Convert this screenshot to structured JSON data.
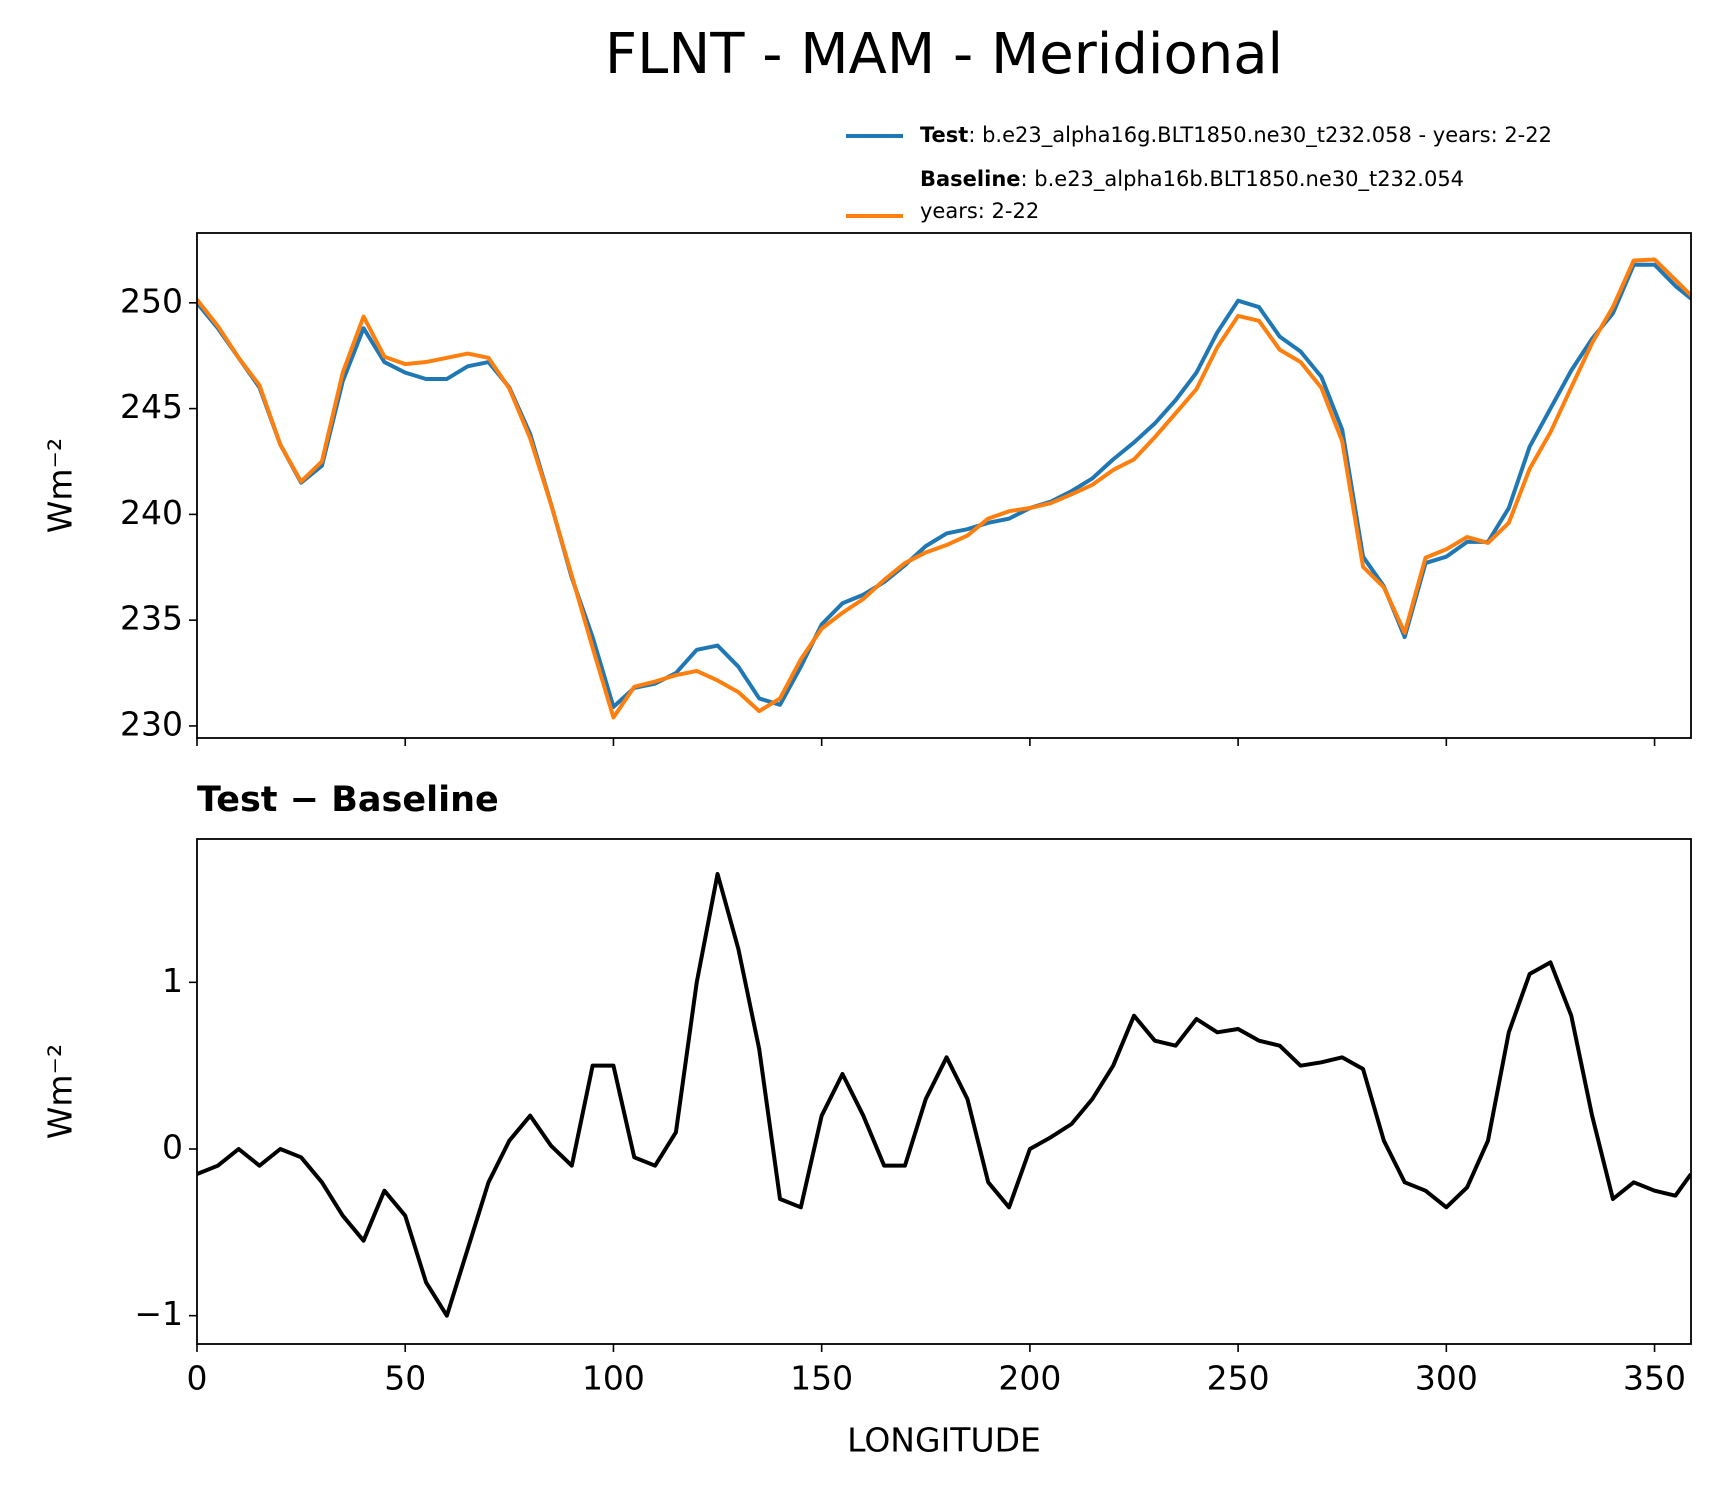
{
  "chart_data": [
    {
      "type": "line",
      "title": "FLNT - MAM - Meridional",
      "ylabel": "Wm⁻²",
      "x": [
        0,
        5,
        10,
        15,
        20,
        25,
        30,
        35,
        40,
        45,
        50,
        55,
        60,
        65,
        70,
        75,
        80,
        85,
        90,
        95,
        100,
        105,
        110,
        115,
        120,
        125,
        130,
        135,
        140,
        145,
        150,
        155,
        160,
        165,
        170,
        175,
        180,
        185,
        190,
        195,
        200,
        205,
        210,
        215,
        220,
        225,
        230,
        235,
        240,
        245,
        250,
        255,
        260,
        265,
        270,
        275,
        280,
        285,
        290,
        295,
        300,
        305,
        310,
        315,
        320,
        325,
        330,
        335,
        340,
        345,
        350,
        355,
        358.75
      ],
      "xlim": [
        0,
        358.75
      ],
      "xticks": [
        0,
        50,
        100,
        150,
        200,
        250,
        300,
        350
      ],
      "show_xtick_labels": false,
      "ylim": [
        229.43,
        253.3
      ],
      "yticks": [
        230,
        235,
        240,
        245,
        250
      ],
      "series": [
        {
          "name": "Test",
          "legend_text": [
            ": b.e23_alpha16g.BLT1850.ne30_t232.058 - years: 2-22"
          ],
          "color": "#1f77b4",
          "values": [
            250,
            248.8,
            247.4,
            246,
            243.3,
            241.5,
            242.3,
            246.3,
            248.8,
            247.2,
            246.7,
            246.4,
            246.4,
            247,
            247.2,
            246,
            243.8,
            240.5,
            237,
            234.2,
            230.9,
            231.8,
            232,
            232.5,
            233.6,
            233.8,
            232.8,
            231.3,
            231,
            232.8,
            234.8,
            235.8,
            236.2,
            236.8,
            237.6,
            238.5,
            239.1,
            239.3,
            239.6,
            239.8,
            240.3,
            240.6,
            241.1,
            241.7,
            242.6,
            243.4,
            244.3,
            245.4,
            246.7,
            248.6,
            250.1,
            249.8,
            248.4,
            247.7,
            246.5,
            244,
            238,
            236.6,
            234.2,
            237.7,
            238,
            238.7,
            238.7,
            240.3,
            243.2,
            245,
            246.8,
            248.3,
            249.5,
            251.8,
            251.8,
            250.8,
            250.2
          ]
        },
        {
          "name": "Baseline",
          "legend_text": [
            ": b.e23_alpha16b.BLT1850.ne30_t232.054",
            "years: 2-22"
          ],
          "color": "#ff7f0e",
          "values": [
            250.15,
            248.9,
            247.4,
            246.1,
            243.3,
            241.55,
            242.5,
            246.7,
            249.35,
            247.45,
            247.1,
            247.2,
            247.4,
            247.6,
            247.4,
            245.95,
            243.6,
            240.48,
            237.1,
            233.7,
            230.4,
            231.85,
            232.1,
            232.4,
            232.6,
            232.15,
            231.6,
            230.7,
            231.3,
            233.15,
            234.6,
            235.35,
            236,
            236.9,
            237.7,
            238.2,
            238.55,
            239,
            239.8,
            240.15,
            240.3,
            240.53,
            240.95,
            241.4,
            242.1,
            242.6,
            243.65,
            244.78,
            245.92,
            247.9,
            249.38,
            249.15,
            247.78,
            247.2,
            245.98,
            243.45,
            237.52,
            236.55,
            234.4,
            237.95,
            238.35,
            238.93,
            238.65,
            239.6,
            242.15,
            243.88,
            246,
            248.1,
            249.8,
            252,
            252.05,
            251.08,
            250.35
          ]
        }
      ]
    },
    {
      "type": "line",
      "title": "Test − Baseline",
      "xlabel": "LONGITUDE",
      "ylabel": "Wm⁻²",
      "x": [
        0,
        5,
        10,
        15,
        20,
        25,
        30,
        35,
        40,
        45,
        50,
        55,
        60,
        65,
        70,
        75,
        80,
        85,
        90,
        95,
        100,
        105,
        110,
        115,
        120,
        125,
        130,
        135,
        140,
        145,
        150,
        155,
        160,
        165,
        170,
        175,
        180,
        185,
        190,
        195,
        200,
        205,
        210,
        215,
        220,
        225,
        230,
        235,
        240,
        245,
        250,
        255,
        260,
        265,
        270,
        275,
        280,
        285,
        290,
        295,
        300,
        305,
        310,
        315,
        320,
        325,
        330,
        335,
        340,
        345,
        350,
        355,
        358.75
      ],
      "xlim": [
        0,
        358.75
      ],
      "xticks": [
        0,
        50,
        100,
        150,
        200,
        250,
        300,
        350
      ],
      "show_xtick_labels": true,
      "ylim": [
        -1.17,
        1.86
      ],
      "yticks": [
        {
          "value": -1,
          "label": "−1"
        },
        0,
        1
      ],
      "series": [
        {
          "color": "#000000",
          "values": [
            -0.15,
            -0.1,
            0,
            -0.1,
            0,
            -0.05,
            -0.2,
            -0.4,
            -0.55,
            -0.25,
            -0.4,
            -0.8,
            -1.0,
            -0.6,
            -0.2,
            0.05,
            0.2,
            0.02,
            -0.1,
            0.5,
            0.5,
            -0.05,
            -0.1,
            0.1,
            1.0,
            1.65,
            1.2,
            0.6,
            -0.3,
            -0.35,
            0.2,
            0.45,
            0.2,
            -0.1,
            -0.1,
            0.3,
            0.55,
            0.3,
            -0.2,
            -0.35,
            0,
            0.07,
            0.15,
            0.3,
            0.5,
            0.8,
            0.65,
            0.62,
            0.78,
            0.7,
            0.72,
            0.65,
            0.62,
            0.5,
            0.52,
            0.55,
            0.48,
            0.05,
            -0.2,
            -0.25,
            -0.35,
            -0.23,
            0.05,
            0.7,
            1.05,
            1.12,
            0.8,
            0.2,
            -0.3,
            -0.2,
            -0.25,
            -0.28,
            -0.15
          ]
        }
      ]
    }
  ]
}
